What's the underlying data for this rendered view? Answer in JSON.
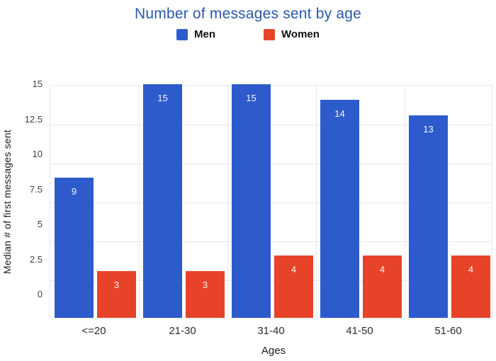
{
  "title": "Number of messages sent by age",
  "colors": {
    "men": "#2e5bcb",
    "women": "#e64328",
    "title": "#2b58ab",
    "gridline": "#e7e7ef",
    "bar_label": "#ffffff"
  },
  "legend": {
    "items": [
      {
        "label": "Men",
        "color": "#2e5bcb",
        "swatch_icon": "square-swatch-icon"
      },
      {
        "label": "Women",
        "color": "#e64328",
        "swatch_icon": "square-swatch-icon"
      }
    ]
  },
  "chart_data": {
    "type": "bar",
    "title": "Number of messages sent by age",
    "categories": [
      "<=20",
      "21-30",
      "31-40",
      "41-50",
      "51-60"
    ],
    "series": [
      {
        "name": "Men",
        "color": "#2e5bcb",
        "values": [
          9,
          15,
          15,
          14,
          13
        ]
      },
      {
        "name": "Women",
        "color": "#e64328",
        "values": [
          3,
          3,
          4,
          4,
          4
        ]
      }
    ],
    "bar_value_labels": {
      "Men": [
        "9",
        "15",
        "15",
        "14",
        "13"
      ],
      "Women": [
        "3",
        "3",
        "4",
        "4",
        "4"
      ]
    },
    "xlabel": "Ages",
    "ylabel": "Median # of first messages sent",
    "ylim": [
      0,
      15
    ],
    "yticks": [
      "15",
      "12.5",
      "10",
      "7.5",
      "5",
      "2.5",
      "0"
    ],
    "grid": true,
    "legend_position": "top-center"
  }
}
